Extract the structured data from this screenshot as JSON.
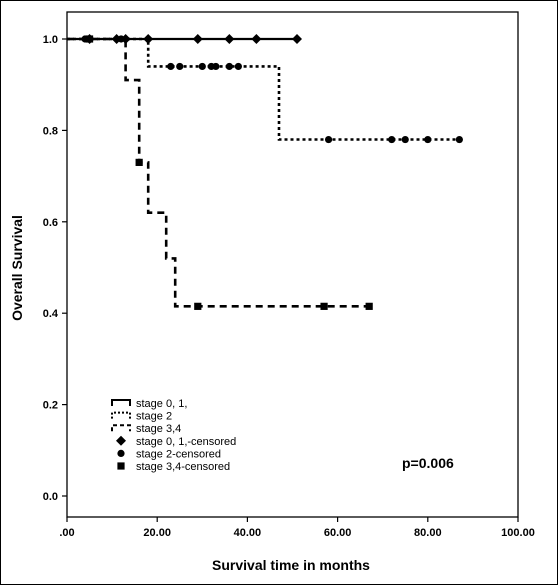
{
  "chart_data": {
    "type": "line",
    "title": "",
    "xlabel": "Survival time in months",
    "ylabel": "Overall Survival",
    "xlim": [
      0,
      100
    ],
    "ylim": [
      0,
      1
    ],
    "xticks": [
      ".00",
      "20.00",
      "40.00",
      "60.00",
      "80.00",
      "100.00"
    ],
    "yticks": [
      "0.0",
      "0.2",
      "0.4",
      "0.6",
      "0.8",
      "1.0"
    ],
    "annotation": "p=0.006",
    "legend_position": "bottom-left",
    "series": [
      {
        "name": "stage 0, 1,",
        "style": "solid",
        "steps": [
          [
            0,
            1.0
          ],
          [
            51,
            1.0
          ]
        ],
        "censored_name": "stage 0, 1,-censored",
        "censored_marker": "diamond",
        "censored": [
          [
            5,
            1.0
          ],
          [
            11,
            1.0
          ],
          [
            13,
            1.0
          ],
          [
            18,
            1.0
          ],
          [
            29,
            1.0
          ],
          [
            36,
            1.0
          ],
          [
            42,
            1.0
          ],
          [
            51,
            1.0
          ]
        ]
      },
      {
        "name": "stage 2",
        "style": "dotted",
        "steps": [
          [
            0,
            1.0
          ],
          [
            18,
            1.0
          ],
          [
            18,
            0.94
          ],
          [
            47,
            0.94
          ],
          [
            47,
            0.78
          ],
          [
            87,
            0.78
          ]
        ],
        "censored_name": "stage 2-censored",
        "censored_marker": "circle",
        "censored": [
          [
            4,
            1.0
          ],
          [
            12,
            1.0
          ],
          [
            23,
            0.94
          ],
          [
            25,
            0.94
          ],
          [
            30,
            0.94
          ],
          [
            32,
            0.94
          ],
          [
            33,
            0.94
          ],
          [
            36,
            0.94
          ],
          [
            38,
            0.94
          ],
          [
            58,
            0.78
          ],
          [
            72,
            0.78
          ],
          [
            75,
            0.78
          ],
          [
            80,
            0.78
          ],
          [
            87,
            0.78
          ]
        ]
      },
      {
        "name": "stage 3,4",
        "style": "dashed",
        "steps": [
          [
            0,
            1.0
          ],
          [
            13,
            1.0
          ],
          [
            13,
            0.91
          ],
          [
            16,
            0.91
          ],
          [
            16,
            0.73
          ],
          [
            18,
            0.73
          ],
          [
            18,
            0.62
          ],
          [
            22,
            0.62
          ],
          [
            22,
            0.52
          ],
          [
            24,
            0.52
          ],
          [
            24,
            0.415
          ],
          [
            67,
            0.415
          ]
        ],
        "censored_name": "stage 3,4-censored",
        "censored_marker": "square",
        "censored": [
          [
            5,
            1.0
          ],
          [
            16,
            0.73
          ],
          [
            29,
            0.415
          ],
          [
            57,
            0.415
          ],
          [
            67,
            0.415
          ]
        ]
      }
    ]
  },
  "legend": {
    "items": [
      {
        "label": "stage 0, 1,",
        "kind": "solid-line"
      },
      {
        "label": "stage 2",
        "kind": "dotted-line"
      },
      {
        "label": "stage 3,4",
        "kind": "dashed-line"
      },
      {
        "label": "stage 0, 1,-censored",
        "kind": "diamond"
      },
      {
        "label": "stage 2-censored",
        "kind": "circle"
      },
      {
        "label": "stage 3,4-censored",
        "kind": "square"
      }
    ]
  },
  "colors": {
    "ink": "#000000",
    "background": "#ffffff"
  }
}
